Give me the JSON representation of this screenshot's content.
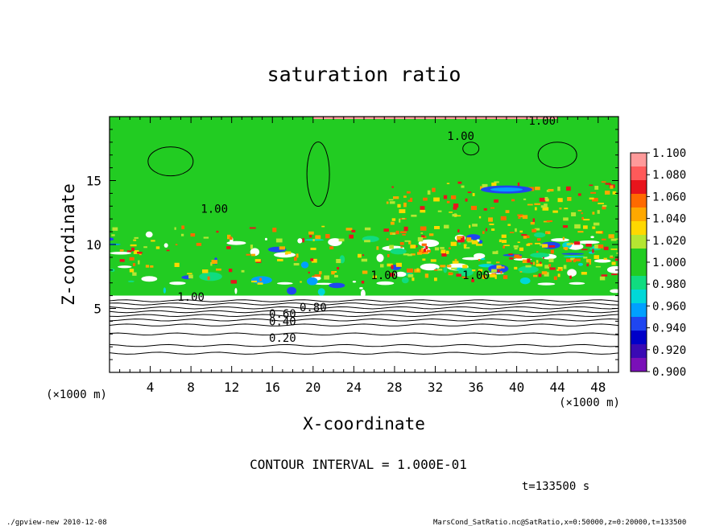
{
  "chart_data": {
    "type": "heatmap",
    "title": "saturation ratio",
    "xlabel": "X-coordinate",
    "ylabel": "Z-coordinate",
    "x_unit": "(×1000 m)",
    "y_unit": "(×1000 m)",
    "xlim": [
      0,
      50
    ],
    "ylim": [
      0,
      20
    ],
    "x_ticks": [
      "4",
      "8",
      "12",
      "16",
      "20",
      "24",
      "28",
      "32",
      "36",
      "40",
      "44",
      "48"
    ],
    "y_ticks": [
      "5",
      "10",
      "15"
    ],
    "contour_interval_label": "CONTOUR INTERVAL = 1.000E-01",
    "time_label": "t=133500 s",
    "contour_labels": [
      {
        "text": "1.00",
        "x": 42.5,
        "z": 19.7
      },
      {
        "text": "1.00",
        "x": 34.5,
        "z": 18.5
      },
      {
        "text": "1.00",
        "x": 10.3,
        "z": 12.8
      },
      {
        "text": "1.00",
        "x": 27.0,
        "z": 7.6
      },
      {
        "text": "1.00",
        "x": 36.0,
        "z": 7.6
      },
      {
        "text": "1.00",
        "x": 8.0,
        "z": 5.9
      },
      {
        "text": "0.80",
        "x": 20.0,
        "z": 5.1
      },
      {
        "text": "0.60",
        "x": 17.0,
        "z": 4.6
      },
      {
        "text": "0.40",
        "x": 17.0,
        "z": 4.0
      },
      {
        "text": "0.20",
        "x": 17.0,
        "z": 2.7
      }
    ],
    "contour_lines_z": [
      5.6,
      5.35,
      5.05,
      4.75,
      4.45,
      4.1,
      3.7,
      3.0,
      2.1,
      1.5
    ],
    "colorbar": {
      "labels": [
        "1.100",
        "1.080",
        "1.060",
        "1.040",
        "1.020",
        "1.000",
        "0.980",
        "0.960",
        "0.940",
        "0.920",
        "0.900"
      ],
      "colors": [
        "#ff9a9a",
        "#ff5a5a",
        "#e8141c",
        "#ff6a00",
        "#ffa800",
        "#ffd800",
        "#b4e632",
        "#22cc22",
        "#22cc22",
        "#10dc80",
        "#00d8d8",
        "#00a0ff",
        "#1f46f0",
        "#0000c8",
        "#3a0ab4",
        "#7a10b8"
      ]
    }
  },
  "footer": {
    "left": "./gpview-new   2010-12-08",
    "right": "MarsCond_SatRatio.nc@SatRatio,x=0:50000,z=0:20000,t=133500"
  }
}
